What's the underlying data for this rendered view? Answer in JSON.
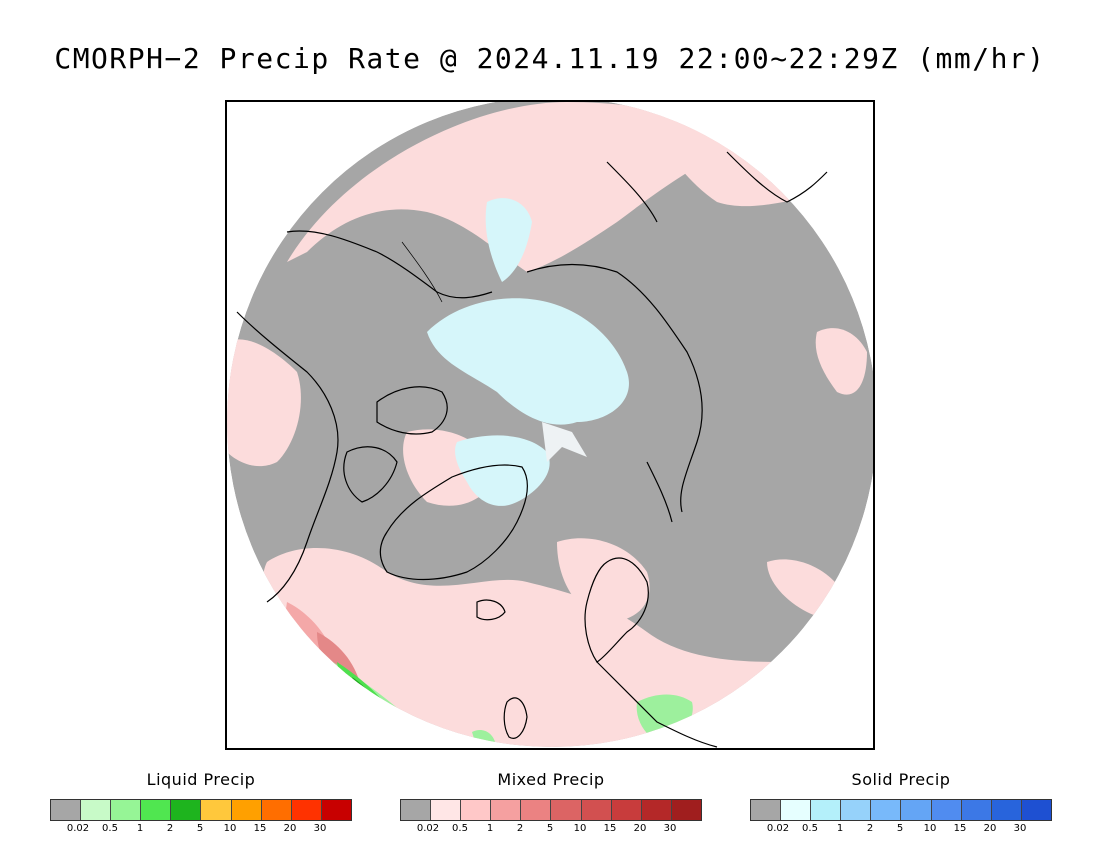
{
  "title": "CMORPH−2 Precip Rate @ 2024.11.19 22:00~22:29Z (mm/hr)",
  "map": {
    "projection": "polar stereographic (north pole)",
    "colors": {
      "no_precip": "#a6a6a6",
      "mixed_light": "#fcdcdc",
      "mixed_moderate": "#f4a8a8",
      "mixed_heavy": "#d86060",
      "solid_light": "#d6f6fa",
      "liquid_light": "#9df09d",
      "liquid_moderate": "#4ee04e",
      "liquid_heavy": "#1fa81f",
      "coastline": "#000000"
    }
  },
  "legends": [
    {
      "title": "Liquid Precip",
      "colors": [
        "#a6a6a6",
        "#c8fac8",
        "#96f596",
        "#50e650",
        "#1eb41e",
        "#ffc83c",
        "#ffa000",
        "#ff6e00",
        "#ff3200",
        "#c80000"
      ],
      "ticks": [
        "0.02",
        "0.5",
        "1",
        "2",
        "5",
        "10",
        "15",
        "20",
        "30"
      ]
    },
    {
      "title": "Mixed Precip",
      "colors": [
        "#a6a6a6",
        "#ffe6e6",
        "#ffc8c8",
        "#f5a0a0",
        "#eb8282",
        "#dc6464",
        "#d25050",
        "#c83c3c",
        "#b42828",
        "#a01e1e"
      ],
      "ticks": [
        "0.02",
        "0.5",
        "1",
        "2",
        "5",
        "10",
        "15",
        "20",
        "30"
      ]
    },
    {
      "title": "Solid Precip",
      "colors": [
        "#a6a6a6",
        "#e6ffff",
        "#b4f0fa",
        "#96d2fa",
        "#78b9fa",
        "#64a5f5",
        "#508cf0",
        "#3c78e6",
        "#2864dc",
        "#1e50d2"
      ],
      "ticks": [
        "0.02",
        "0.5",
        "1",
        "2",
        "5",
        "10",
        "15",
        "20",
        "30"
      ]
    }
  ]
}
